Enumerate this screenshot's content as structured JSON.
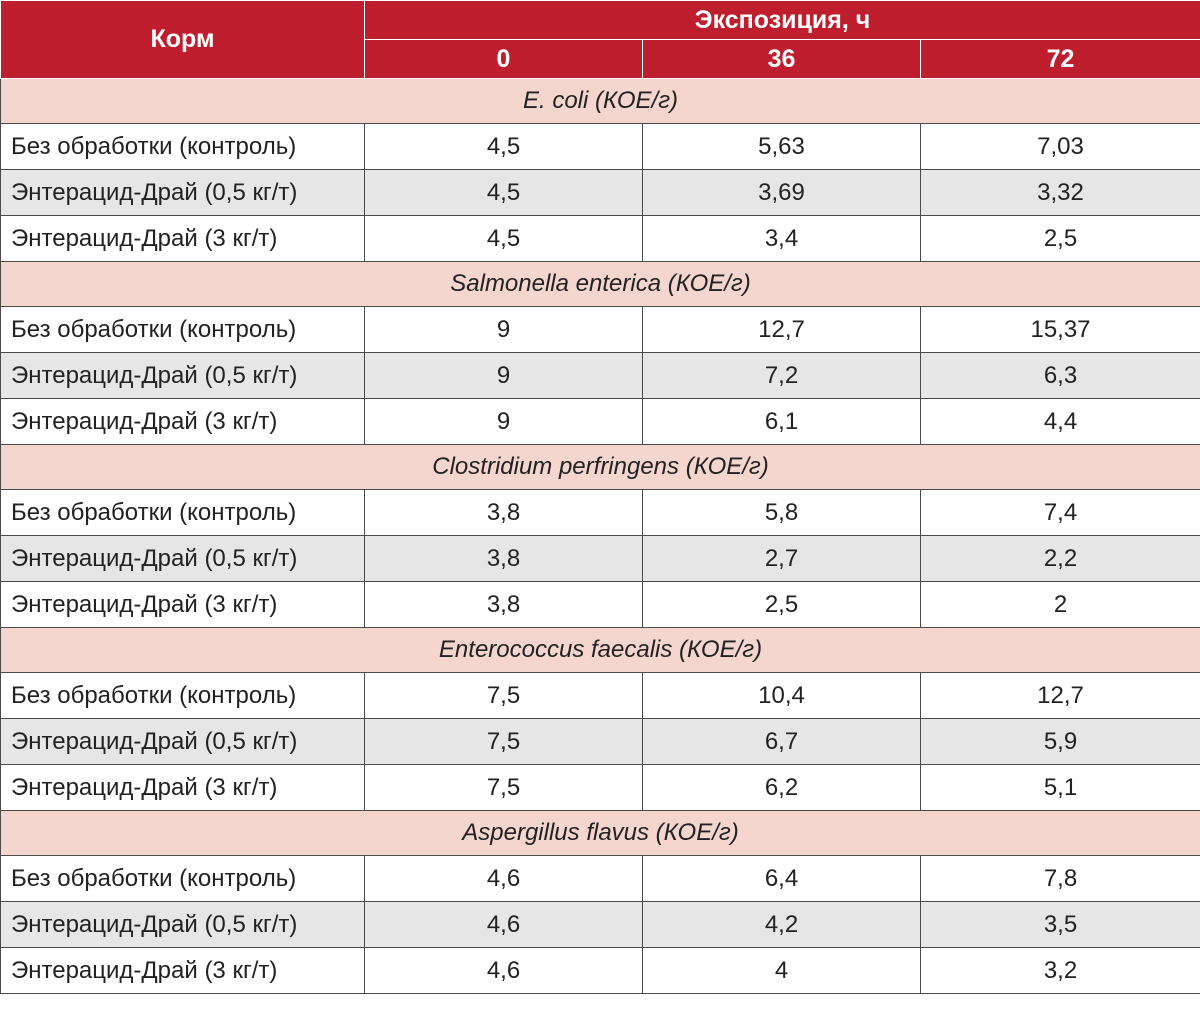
{
  "header": {
    "feed_label": "Корм",
    "exposure_label": "Экспозиция, ч",
    "exposure_columns": [
      "0",
      "36",
      "72"
    ]
  },
  "sections": [
    {
      "title": "E. coli (КОЕ/г)",
      "rows": [
        {
          "feed": "Без обработки (контроль)",
          "values": [
            "4,5",
            "5,63",
            "7,03"
          ]
        },
        {
          "feed": "Энтерацид-Драй (0,5 кг/т)",
          "values": [
            "4,5",
            "3,69",
            "3,32"
          ]
        },
        {
          "feed": "Энтерацид-Драй (3 кг/т)",
          "values": [
            "4,5",
            "3,4",
            "2,5"
          ]
        }
      ]
    },
    {
      "title": "Salmonella enterica (КОЕ/г)",
      "rows": [
        {
          "feed": "Без обработки (контроль)",
          "values": [
            "9",
            "12,7",
            "15,37"
          ]
        },
        {
          "feed": "Энтерацид-Драй (0,5 кг/т)",
          "values": [
            "9",
            "7,2",
            "6,3"
          ]
        },
        {
          "feed": "Энтерацид-Драй (3 кг/т)",
          "values": [
            "9",
            "6,1",
            "4,4"
          ]
        }
      ]
    },
    {
      "title": "Clostridium perfringens (КОЕ/г)",
      "rows": [
        {
          "feed": "Без обработки (контроль)",
          "values": [
            "3,8",
            "5,8",
            "7,4"
          ]
        },
        {
          "feed": "Энтерацид-Драй (0,5 кг/т)",
          "values": [
            "3,8",
            "2,7",
            "2,2"
          ]
        },
        {
          "feed": "Энтерацид-Драй (3 кг/т)",
          "values": [
            "3,8",
            "2,5",
            "2"
          ]
        }
      ]
    },
    {
      "title": "Enterococcus faecalis (КОЕ/г)",
      "rows": [
        {
          "feed": "Без обработки (контроль)",
          "values": [
            "7,5",
            "10,4",
            "12,7"
          ]
        },
        {
          "feed": "Энтерацид-Драй (0,5 кг/т)",
          "values": [
            "7,5",
            "6,7",
            "5,9"
          ]
        },
        {
          "feed": "Энтерацид-Драй (3 кг/т)",
          "values": [
            "7,5",
            "6,2",
            "5,1"
          ]
        }
      ]
    },
    {
      "title": "Aspergillus flavus (КОЕ/г)",
      "rows": [
        {
          "feed": "Без обработки (контроль)",
          "values": [
            "4,6",
            "6,4",
            "7,8"
          ]
        },
        {
          "feed": "Энтерацид-Драй (0,5 кг/т)",
          "values": [
            "4,6",
            "4,2",
            "3,5"
          ]
        },
        {
          "feed": "Энтерацид-Драй (3 кг/т)",
          "values": [
            "4,6",
            "4",
            "3,2"
          ]
        }
      ]
    }
  ],
  "colors": {
    "header_bg": "#be1e2d",
    "section_bg": "#f4d6cf",
    "shaded_row_bg": "#e6e6e6"
  }
}
